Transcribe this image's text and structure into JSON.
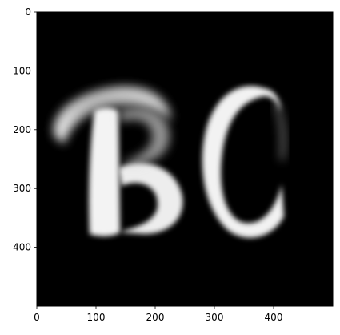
{
  "image": {
    "description_colors": {
      "background": "#000000",
      "glyph": "#f2f2f2",
      "frame": "#000000"
    },
    "x_ticks": [
      {
        "value": 0,
        "label": "0"
      },
      {
        "value": 100,
        "label": "100"
      },
      {
        "value": 200,
        "label": "200"
      },
      {
        "value": 300,
        "label": "300"
      },
      {
        "value": 400,
        "label": "400"
      }
    ],
    "y_ticks": [
      {
        "value": 0,
        "label": "0"
      },
      {
        "value": 100,
        "label": "100"
      },
      {
        "value": 200,
        "label": "200"
      },
      {
        "value": 300,
        "label": "300"
      },
      {
        "value": 400,
        "label": "400"
      }
    ],
    "xlim": [
      0,
      500
    ],
    "ylim": [
      500,
      0
    ]
  }
}
